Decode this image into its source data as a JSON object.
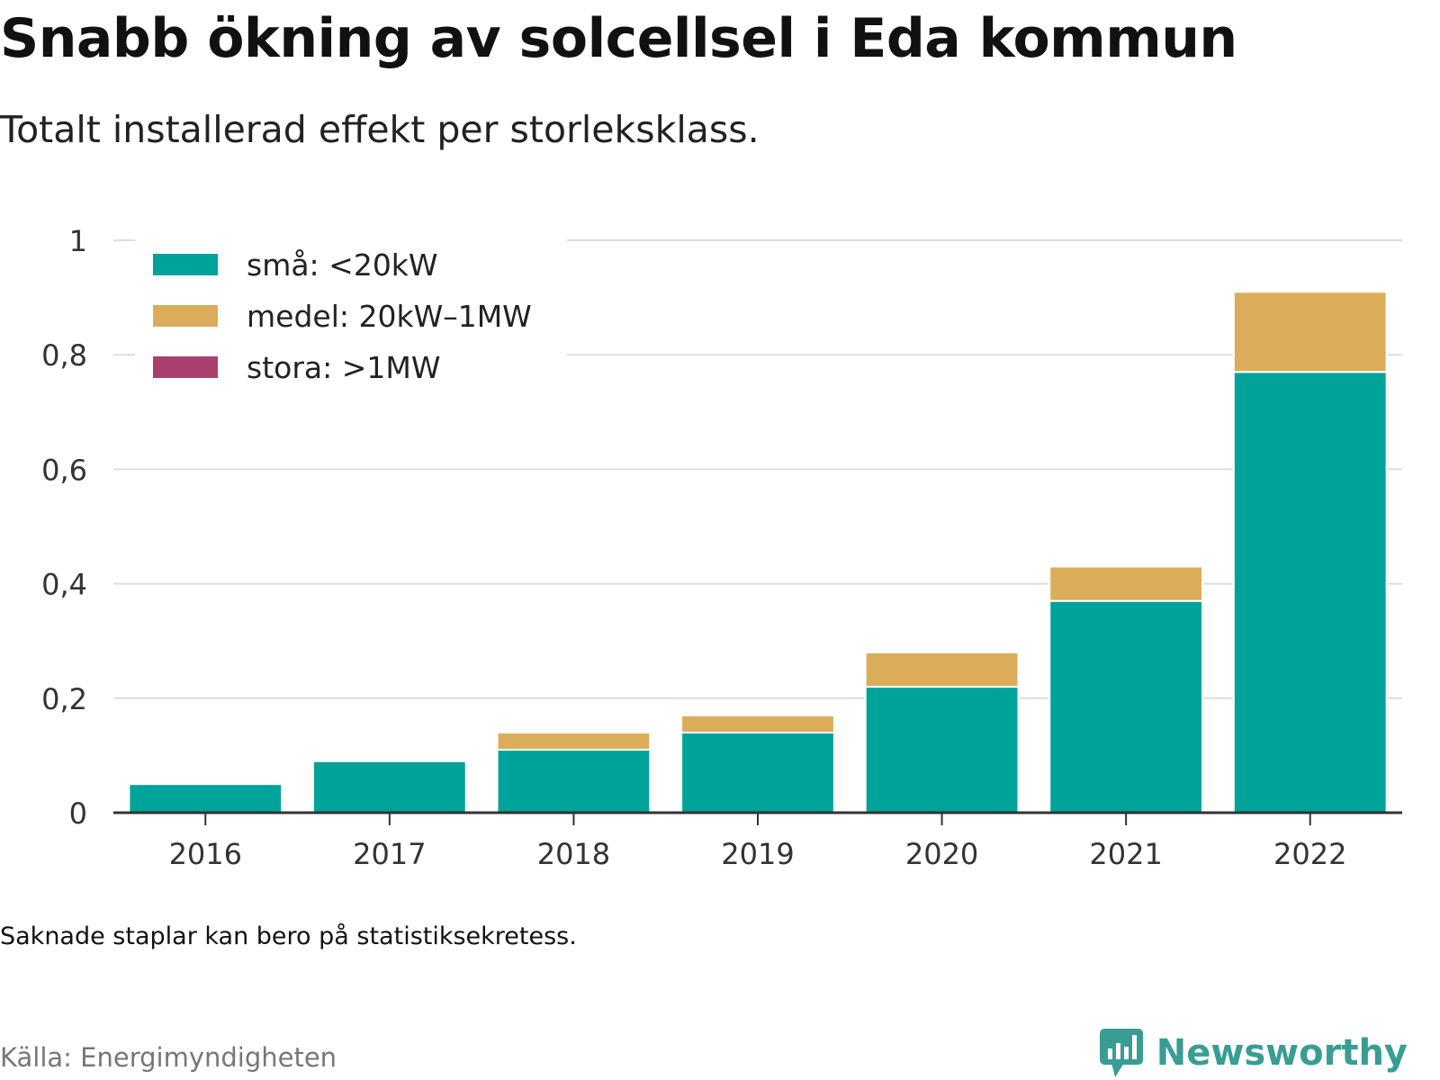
{
  "title": "Snabb ökning av solcellsel i Eda kommun",
  "subtitle": "Totalt installerad effekt per storleksklass.",
  "note": "Saknade staplar kan bero på statistiksekretess.",
  "source": "Källa: Energimyndigheten",
  "brand": {
    "name": "Newsworthy",
    "icon": "newsworthy-logo-icon",
    "color": "#3a9d93"
  },
  "chart_data": {
    "type": "bar",
    "stacked": true,
    "categories": [
      "2016",
      "2017",
      "2018",
      "2019",
      "2020",
      "2021",
      "2022"
    ],
    "series": [
      {
        "name": "små: <20kW",
        "color": "#00a39a",
        "values": [
          0.05,
          0.09,
          0.11,
          0.14,
          0.22,
          0.37,
          0.77
        ]
      },
      {
        "name": "medel: 20kW–1MW",
        "color": "#dbad5a",
        "values": [
          0,
          0,
          0.03,
          0.03,
          0.06,
          0.06,
          0.14
        ]
      },
      {
        "name": "stora: >1MW",
        "color": "#a8406d",
        "values": [
          0,
          0,
          0,
          0,
          0,
          0,
          0
        ]
      }
    ],
    "ylim": [
      0,
      1
    ],
    "yticks": [
      0,
      0.2,
      0.4,
      0.6,
      0.8,
      1
    ],
    "ytick_labels": [
      "0",
      "0,2",
      "0,4",
      "0,6",
      "0,8",
      "1"
    ],
    "grid": true,
    "legend_position": "top-left",
    "title": "",
    "xlabel": "",
    "ylabel": ""
  }
}
